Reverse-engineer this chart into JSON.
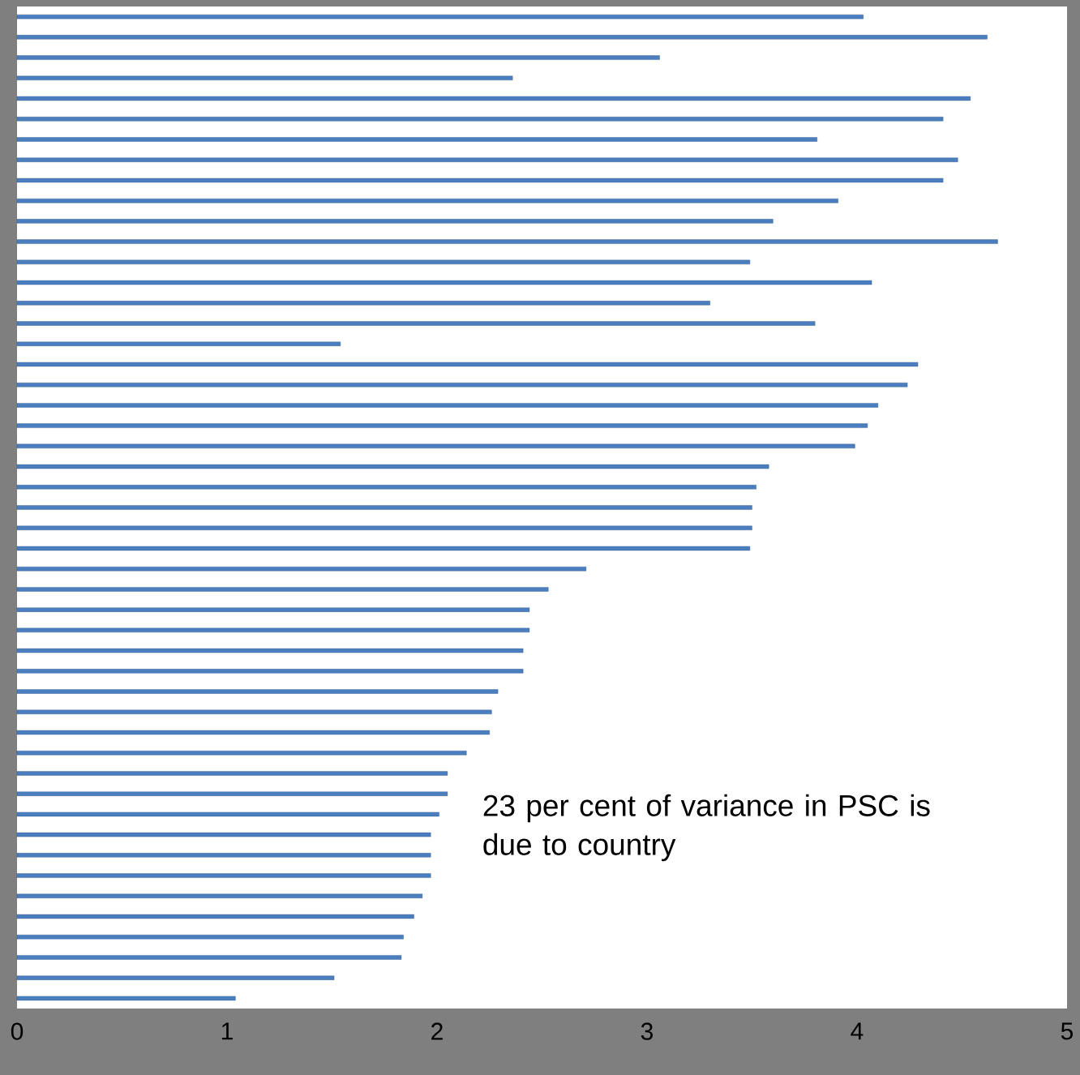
{
  "chart_data": {
    "type": "bar",
    "orientation": "horizontal",
    "categories": [
      null,
      null,
      null,
      null,
      null,
      null,
      null,
      null,
      null,
      null,
      null,
      null,
      null,
      null,
      null,
      null,
      null,
      null,
      null,
      null,
      null,
      null,
      null,
      null,
      null,
      null,
      null,
      null,
      null,
      null,
      null,
      null,
      null,
      null,
      null,
      null,
      null,
      null,
      null,
      null,
      null,
      null,
      null,
      null,
      null,
      null,
      null,
      null,
      null
    ],
    "values": [
      4.03,
      4.62,
      3.06,
      2.36,
      4.54,
      4.41,
      3.81,
      4.48,
      4.41,
      3.91,
      3.6,
      4.67,
      3.49,
      4.07,
      3.3,
      3.8,
      1.54,
      4.29,
      4.24,
      4.1,
      4.05,
      3.99,
      3.58,
      3.52,
      3.5,
      3.5,
      3.49,
      2.71,
      2.53,
      2.44,
      2.44,
      2.41,
      2.41,
      2.29,
      2.26,
      2.25,
      2.14,
      2.05,
      2.05,
      2.01,
      1.97,
      1.97,
      1.97,
      1.93,
      1.89,
      1.84,
      1.83,
      1.51,
      1.04
    ],
    "color": "#4a7ebf",
    "xlim": [
      0,
      5
    ],
    "xticks": [
      0,
      1,
      2,
      3,
      4,
      5
    ],
    "annotations": [
      "23 per cent of variance in PSC is due to country"
    ]
  }
}
